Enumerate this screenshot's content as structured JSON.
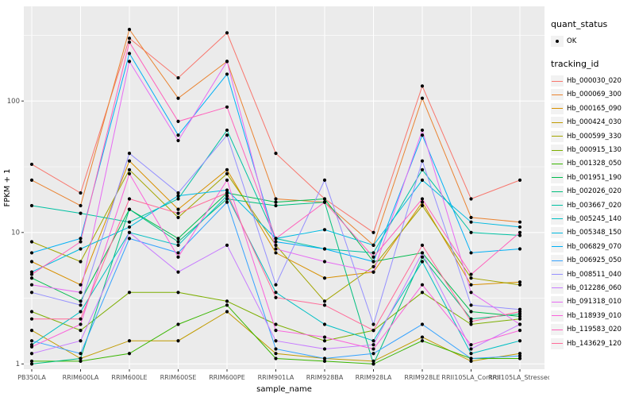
{
  "chart_data": {
    "type": "line",
    "title": "",
    "xlabel": "sample_name",
    "ylabel": "FPKM + 1",
    "y_scale": "log10",
    "y_ticks": [
      1,
      10,
      100
    ],
    "y_minor_ticks": [
      3.1623,
      31.623,
      316.23
    ],
    "ylim": [
      0.91,
      525
    ],
    "grid": "on",
    "legend_position": "right",
    "point_color": "#000000",
    "panel_color": "#EBEBEB",
    "categories": [
      "PB350LA",
      "RRIM600LA",
      "RRIM600LE",
      "RRIM600SE",
      "RRIM600PE",
      "RRIM901LA",
      "RRIM928BA",
      "RRIM928LA",
      "RRIM928LE",
      "RRII105LA_Control",
      "RRII105LA_Stressed"
    ],
    "series": [
      {
        "name": "Hb_000030_020",
        "color": "#F8766D",
        "values": [
          33,
          20,
          300,
          150,
          330,
          40,
          18,
          10,
          130,
          18,
          25
        ]
      },
      {
        "name": "Hb_000069_300",
        "color": "#EA8331",
        "values": [
          25,
          16,
          350,
          105,
          200,
          18,
          17,
          8,
          105,
          13,
          12
        ]
      },
      {
        "name": "Hb_000165_090",
        "color": "#D89000",
        "values": [
          6,
          4,
          35,
          15,
          30,
          7,
          4.5,
          5,
          17,
          4,
          4.2
        ]
      },
      {
        "name": "Hb_000424_030",
        "color": "#C09B00",
        "values": [
          1.8,
          1.1,
          1.5,
          1.5,
          2.5,
          1.2,
          1.1,
          1.05,
          1.6,
          1.05,
          1.2
        ]
      },
      {
        "name": "Hb_000599_330",
        "color": "#A3A500",
        "values": [
          8.5,
          6,
          30,
          13,
          28,
          8,
          3,
          5.5,
          16,
          4.5,
          4
        ]
      },
      {
        "name": "Hb_000915_130",
        "color": "#7CAE00",
        "values": [
          2.5,
          1.8,
          3.5,
          3.5,
          3,
          2,
          1.5,
          1.8,
          3.5,
          2,
          2.2
        ]
      },
      {
        "name": "Hb_001328_050",
        "color": "#39B600",
        "values": [
          1.05,
          1.05,
          1.2,
          2,
          2.8,
          1.1,
          1.05,
          1.0,
          1.5,
          1.1,
          1.1
        ]
      },
      {
        "name": "Hb_001951_190",
        "color": "#00BB4E",
        "values": [
          4.5,
          3,
          15,
          9,
          20,
          17,
          18,
          6,
          7,
          2.5,
          2.3
        ]
      },
      {
        "name": "Hb_002026_020",
        "color": "#00BF7D",
        "values": [
          1.0,
          1.1,
          15,
          8.5,
          18,
          16,
          17,
          1.0,
          6.5,
          2.2,
          2.4
        ]
      },
      {
        "name": "Hb_003667_020",
        "color": "#00C1A3",
        "values": [
          16,
          14,
          12,
          18,
          60,
          9,
          7.5,
          7,
          30,
          10,
          9.5
        ]
      },
      {
        "name": "Hb_005245_140",
        "color": "#00BFC4",
        "values": [
          1.4,
          2.5,
          10,
          8,
          19,
          3.5,
          2,
          1.5,
          6,
          1.2,
          1.5
        ]
      },
      {
        "name": "Hb_005348_150",
        "color": "#00BAE0",
        "values": [
          5,
          7.5,
          11,
          19,
          21,
          9,
          10.5,
          8,
          25,
          12,
          11
        ]
      },
      {
        "name": "Hb_006829_070",
        "color": "#00B0F6",
        "values": [
          7,
          9,
          230,
          55,
          160,
          8.5,
          7.5,
          6,
          55,
          7,
          7.5
        ]
      },
      {
        "name": "Hb_006925_050",
        "color": "#35A2FF",
        "values": [
          1.5,
          1.2,
          9,
          7,
          17,
          1.3,
          1.1,
          1.2,
          2,
          1.1,
          1.15
        ]
      },
      {
        "name": "Hb_008511_040",
        "color": "#9590FF",
        "values": [
          3.5,
          2.8,
          40,
          20,
          55,
          4,
          25,
          2,
          35,
          2.8,
          2.6
        ]
      },
      {
        "name": "Hb_012286_060",
        "color": "#C77CFF",
        "values": [
          1.2,
          1.5,
          10,
          5,
          8,
          1.5,
          1.3,
          1.4,
          7,
          1.3,
          2
        ]
      },
      {
        "name": "Hb_091318_010",
        "color": "#E76BF3",
        "values": [
          4,
          3.5,
          200,
          50,
          200,
          7.5,
          6,
          5,
          60,
          3.5,
          2
        ]
      },
      {
        "name": "Hb_118939_010",
        "color": "#FA62DB",
        "values": [
          1.35,
          2,
          28,
          6.5,
          25,
          1.8,
          1.6,
          1.3,
          4,
          1.4,
          1.8
        ]
      },
      {
        "name": "Hb_119583_020",
        "color": "#FF62BC",
        "values": [
          4.8,
          8.5,
          280,
          70,
          90,
          9,
          17,
          6.5,
          18,
          4.8,
          10
        ]
      },
      {
        "name": "Hb_143629_120",
        "color": "#FF6A98",
        "values": [
          2.2,
          2.2,
          18,
          14,
          20,
          3.2,
          2.8,
          1.8,
          8,
          2.1,
          2.5
        ]
      }
    ]
  },
  "legend": {
    "quant_title": "quant_status",
    "quant_items": [
      {
        "label": "OK"
      }
    ],
    "tracking_title": "tracking_id"
  },
  "axes": {
    "xlabel": "sample_name",
    "ylabel": "FPKM + 1",
    "y_tick_labels": [
      "1",
      "10",
      "100"
    ]
  }
}
